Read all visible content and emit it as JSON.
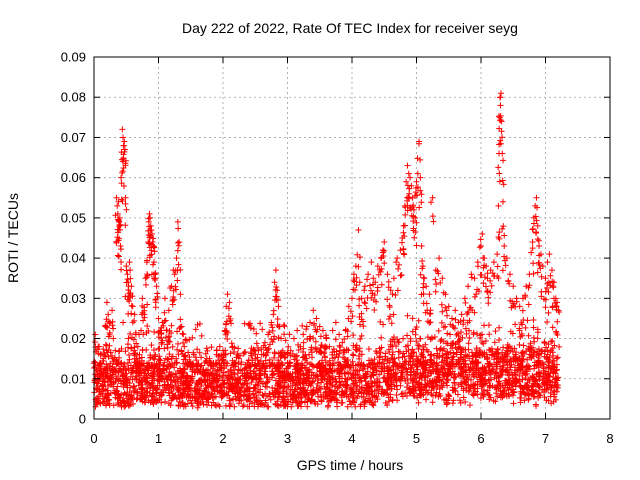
{
  "chart_data": {
    "type": "scatter",
    "title": "Day 222 of 2022, Rate Of TEC Index for receiver seyg",
    "xlabel": "GPS time / hours",
    "ylabel": "ROTI / TECUs",
    "xlim": [
      0,
      8
    ],
    "ylim": [
      0,
      0.09
    ],
    "xticks": [
      "0",
      "1",
      "2",
      "3",
      "4",
      "5",
      "6",
      "7",
      "8"
    ],
    "yticks": [
      "0",
      "0.01",
      "0.02",
      "0.03",
      "0.04",
      "0.05",
      "0.06",
      "0.07",
      "0.08",
      "0.09"
    ],
    "grid": true,
    "marker": "+",
    "color": "#ff0000",
    "series": [
      {
        "name": "seyg",
        "points": [
          [
            0.02,
            0.021
          ],
          [
            0.05,
            0.012
          ],
          [
            0.08,
            0.018
          ],
          [
            0.1,
            0.016
          ],
          [
            0.14,
            0.015
          ],
          [
            0.18,
            0.023
          ],
          [
            0.2,
            0.029
          ],
          [
            0.22,
            0.026
          ],
          [
            0.25,
            0.024
          ],
          [
            0.28,
            0.027
          ],
          [
            0.3,
            0.02
          ],
          [
            0.33,
            0.017
          ],
          [
            0.35,
            0.055
          ],
          [
            0.36,
            0.053
          ],
          [
            0.37,
            0.051
          ],
          [
            0.38,
            0.054
          ],
          [
            0.39,
            0.049
          ],
          [
            0.4,
            0.05
          ],
          [
            0.41,
            0.043
          ],
          [
            0.42,
            0.06
          ],
          [
            0.44,
            0.072
          ],
          [
            0.45,
            0.07
          ],
          [
            0.46,
            0.068
          ],
          [
            0.47,
            0.069
          ],
          [
            0.48,
            0.067
          ],
          [
            0.49,
            0.055
          ],
          [
            0.5,
            0.038
          ],
          [
            0.52,
            0.036
          ],
          [
            0.53,
            0.034
          ],
          [
            0.55,
            0.039
          ],
          [
            0.56,
            0.037
          ],
          [
            0.58,
            0.033
          ],
          [
            0.6,
            0.028
          ],
          [
            0.63,
            0.026
          ],
          [
            0.65,
            0.021
          ],
          [
            0.68,
            0.018
          ],
          [
            0.7,
            0.015
          ],
          [
            0.73,
            0.022
          ],
          [
            0.75,
            0.03
          ],
          [
            0.78,
            0.026
          ],
          [
            0.8,
            0.035
          ],
          [
            0.82,
            0.039
          ],
          [
            0.84,
            0.044
          ],
          [
            0.85,
            0.049
          ],
          [
            0.86,
            0.051
          ],
          [
            0.87,
            0.05
          ],
          [
            0.88,
            0.048
          ],
          [
            0.89,
            0.047
          ],
          [
            0.9,
            0.046
          ],
          [
            0.91,
            0.044
          ],
          [
            0.92,
            0.043
          ],
          [
            0.93,
            0.039
          ],
          [
            0.95,
            0.035
          ],
          [
            0.97,
            0.033
          ],
          [
            1.0,
            0.025
          ],
          [
            1.03,
            0.022
          ],
          [
            1.06,
            0.024
          ],
          [
            1.1,
            0.03
          ],
          [
            1.13,
            0.022
          ],
          [
            1.16,
            0.027
          ],
          [
            1.2,
            0.033
          ],
          [
            1.23,
            0.037
          ],
          [
            1.25,
            0.036
          ],
          [
            1.28,
            0.04
          ],
          [
            1.3,
            0.049
          ],
          [
            1.32,
            0.044
          ],
          [
            1.34,
            0.031
          ],
          [
            1.36,
            0.023
          ],
          [
            1.4,
            0.018
          ],
          [
            1.45,
            0.014
          ],
          [
            1.5,
            0.013
          ],
          [
            1.55,
            0.016
          ],
          [
            1.6,
            0.012
          ],
          [
            1.65,
            0.013
          ],
          [
            1.7,
            0.011
          ],
          [
            1.75,
            0.015
          ],
          [
            1.8,
            0.014
          ],
          [
            1.85,
            0.013
          ],
          [
            1.9,
            0.016
          ],
          [
            1.95,
            0.018
          ],
          [
            2.0,
            0.017
          ],
          [
            2.03,
            0.022
          ],
          [
            2.05,
            0.028
          ],
          [
            2.07,
            0.031
          ],
          [
            2.1,
            0.029
          ],
          [
            2.15,
            0.018
          ],
          [
            2.2,
            0.014
          ],
          [
            2.3,
            0.012
          ],
          [
            2.4,
            0.013
          ],
          [
            2.5,
            0.015
          ],
          [
            2.55,
            0.017
          ],
          [
            2.6,
            0.016
          ],
          [
            2.65,
            0.019
          ],
          [
            2.7,
            0.021
          ],
          [
            2.75,
            0.024
          ],
          [
            2.78,
            0.026
          ],
          [
            2.8,
            0.034
          ],
          [
            2.82,
            0.037
          ],
          [
            2.84,
            0.032
          ],
          [
            2.86,
            0.028
          ],
          [
            2.88,
            0.023
          ],
          [
            2.9,
            0.02
          ],
          [
            2.95,
            0.016
          ],
          [
            3.0,
            0.014
          ],
          [
            3.05,
            0.017
          ],
          [
            3.1,
            0.02
          ],
          [
            3.15,
            0.022
          ],
          [
            3.2,
            0.018
          ],
          [
            3.25,
            0.019
          ],
          [
            3.3,
            0.023
          ],
          [
            3.35,
            0.024
          ],
          [
            3.4,
            0.027
          ],
          [
            3.45,
            0.025
          ],
          [
            3.5,
            0.023
          ],
          [
            3.55,
            0.022
          ],
          [
            3.6,
            0.02
          ],
          [
            3.65,
            0.018
          ],
          [
            3.7,
            0.022
          ],
          [
            3.75,
            0.024
          ],
          [
            3.8,
            0.021
          ],
          [
            3.85,
            0.019
          ],
          [
            3.9,
            0.022
          ],
          [
            3.95,
            0.028
          ],
          [
            4.0,
            0.03
          ],
          [
            4.03,
            0.036
          ],
          [
            4.06,
            0.038
          ],
          [
            4.1,
            0.047
          ],
          [
            4.12,
            0.034
          ],
          [
            4.15,
            0.03
          ],
          [
            4.2,
            0.033
          ],
          [
            4.25,
            0.036
          ],
          [
            4.3,
            0.039
          ],
          [
            4.33,
            0.035
          ],
          [
            4.36,
            0.034
          ],
          [
            4.4,
            0.038
          ],
          [
            4.45,
            0.04
          ],
          [
            4.48,
            0.042
          ],
          [
            4.5,
            0.044
          ],
          [
            4.55,
            0.036
          ],
          [
            4.6,
            0.032
          ],
          [
            4.65,
            0.035
          ],
          [
            4.7,
            0.04
          ],
          [
            4.75,
            0.042
          ],
          [
            4.78,
            0.045
          ],
          [
            4.8,
            0.048
          ],
          [
            4.82,
            0.053
          ],
          [
            4.84,
            0.059
          ],
          [
            4.86,
            0.063
          ],
          [
            4.88,
            0.061
          ],
          [
            4.9,
            0.06
          ],
          [
            4.92,
            0.058
          ],
          [
            4.94,
            0.055
          ],
          [
            4.96,
            0.052
          ],
          [
            4.98,
            0.05
          ],
          [
            5.0,
            0.059
          ],
          [
            5.02,
            0.061
          ],
          [
            5.04,
            0.069
          ],
          [
            5.06,
            0.06
          ],
          [
            5.08,
            0.043
          ],
          [
            5.1,
            0.038
          ],
          [
            5.12,
            0.035
          ],
          [
            5.15,
            0.033
          ],
          [
            5.2,
            0.031
          ],
          [
            5.25,
            0.055
          ],
          [
            5.3,
            0.037
          ],
          [
            5.35,
            0.04
          ],
          [
            5.4,
            0.035
          ],
          [
            5.45,
            0.031
          ],
          [
            5.5,
            0.028
          ],
          [
            5.55,
            0.025
          ],
          [
            5.6,
            0.027
          ],
          [
            5.65,
            0.024
          ],
          [
            5.7,
            0.026
          ],
          [
            5.75,
            0.03
          ],
          [
            5.8,
            0.033
          ],
          [
            5.85,
            0.036
          ],
          [
            5.9,
            0.035
          ],
          [
            5.95,
            0.039
          ],
          [
            6.0,
            0.043
          ],
          [
            6.02,
            0.046
          ],
          [
            6.05,
            0.04
          ],
          [
            6.08,
            0.038
          ],
          [
            6.1,
            0.035
          ],
          [
            6.15,
            0.037
          ],
          [
            6.2,
            0.039
          ],
          [
            6.25,
            0.041
          ],
          [
            6.27,
            0.053
          ],
          [
            6.28,
            0.066
          ],
          [
            6.29,
            0.075
          ],
          [
            6.3,
            0.08
          ],
          [
            6.31,
            0.081
          ],
          [
            6.32,
            0.074
          ],
          [
            6.33,
            0.066
          ],
          [
            6.34,
            0.054
          ],
          [
            6.36,
            0.043
          ],
          [
            6.4,
            0.04
          ],
          [
            6.45,
            0.036
          ],
          [
            6.5,
            0.033
          ],
          [
            6.55,
            0.03
          ],
          [
            6.6,
            0.028
          ],
          [
            6.65,
            0.03
          ],
          [
            6.7,
            0.033
          ],
          [
            6.75,
            0.036
          ],
          [
            6.8,
            0.044
          ],
          [
            6.82,
            0.05
          ],
          [
            6.84,
            0.053
          ],
          [
            6.86,
            0.055
          ],
          [
            6.88,
            0.048
          ],
          [
            6.9,
            0.043
          ],
          [
            6.93,
            0.041
          ],
          [
            6.96,
            0.038
          ],
          [
            7.0,
            0.035
          ],
          [
            7.03,
            0.039
          ],
          [
            7.06,
            0.041
          ],
          [
            7.1,
            0.037
          ],
          [
            7.13,
            0.034
          ],
          [
            7.16,
            0.03
          ],
          [
            7.18,
            0.029
          ],
          [
            7.2,
            0.027
          ]
        ],
        "band_range": [
          0.0,
          7.2
        ]
      }
    ]
  }
}
